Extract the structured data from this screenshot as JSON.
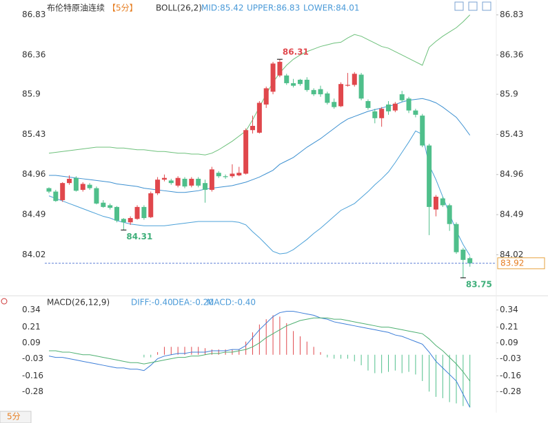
{
  "chart_data": [
    {
      "type": "candlestick",
      "title": "布伦特原油连续",
      "period": "【5分】",
      "indicator": "BOLL(26,2)",
      "up_color": "#e0474c",
      "down_color": "#4fbf8b",
      "price_line_color": "#5b7fd6",
      "ylim": [
        83.58,
        86.94
      ],
      "yticks": [
        86.83,
        86.36,
        85.9,
        85.43,
        84.96,
        84.49,
        84.02
      ],
      "open": [
        84.8,
        84.76,
        84.66,
        84.86,
        84.92,
        84.78,
        84.84,
        84.8,
        84.63,
        84.6,
        84.58,
        84.44,
        84.4,
        84.44,
        84.58,
        84.46,
        84.74,
        84.9,
        84.89,
        84.83,
        84.91,
        84.83,
        84.91,
        84.86,
        84.78,
        84.98,
        84.94,
        84.94,
        84.95,
        84.97,
        85.48,
        85.45,
        85.78,
        85.93,
        86.12,
        86.12,
        86.03,
        86.07,
        86.07,
        85.95,
        85.96,
        85.91,
        85.81,
        85.76,
        86.0,
        86.01,
        86.13,
        85.82,
        85.7,
        85.62,
        85.78,
        85.71,
        85.9,
        85.85,
        85.71,
        85.65,
        85.3,
        84.55,
        84.68,
        84.6,
        84.38,
        84.08,
        83.98
      ],
      "high": [
        84.81,
        84.78,
        84.87,
        84.95,
        84.94,
        84.87,
        84.86,
        84.82,
        84.66,
        84.62,
        84.59,
        84.45,
        84.47,
        84.6,
        84.6,
        84.76,
        84.93,
        84.96,
        84.91,
        84.94,
        84.93,
        84.93,
        84.93,
        84.9,
        85.05,
        85.0,
        84.96,
        85.08,
        85.05,
        85.5,
        85.65,
        85.82,
        85.99,
        86.28,
        86.31,
        86.14,
        86.08,
        86.08,
        86.1,
        85.97,
        86.0,
        85.93,
        85.85,
        86.04,
        86.15,
        86.16,
        86.15,
        85.84,
        85.73,
        85.75,
        85.82,
        85.81,
        85.94,
        85.87,
        85.73,
        85.67,
        85.32,
        84.72,
        84.7,
        84.62,
        84.4,
        84.1,
        84.0
      ],
      "low": [
        84.74,
        84.64,
        84.64,
        84.84,
        84.76,
        84.76,
        84.78,
        84.61,
        84.57,
        84.55,
        84.4,
        84.31,
        84.37,
        84.43,
        84.43,
        84.45,
        84.72,
        84.88,
        84.84,
        84.81,
        84.8,
        84.81,
        84.81,
        84.63,
        84.76,
        84.92,
        84.91,
        84.92,
        84.94,
        84.96,
        85.44,
        85.44,
        85.74,
        85.9,
        86.1,
        86.01,
        85.98,
        86.0,
        85.93,
        85.88,
        85.87,
        85.78,
        85.73,
        85.75,
        85.99,
        85.99,
        85.83,
        85.72,
        85.56,
        85.52,
        85.66,
        85.69,
        85.81,
        85.68,
        85.63,
        85.28,
        84.25,
        84.47,
        84.58,
        84.3,
        84.03,
        83.75,
        83.88
      ],
      "close": [
        84.76,
        84.65,
        84.86,
        84.91,
        84.77,
        84.85,
        84.8,
        84.62,
        84.58,
        84.57,
        84.42,
        84.4,
        84.45,
        84.58,
        84.45,
        84.74,
        84.9,
        84.92,
        84.86,
        84.92,
        84.82,
        84.91,
        84.83,
        84.78,
        85.02,
        84.94,
        84.93,
        84.97,
        84.98,
        85.48,
        85.53,
        85.8,
        85.97,
        86.26,
        86.28,
        86.03,
        86.0,
        86.02,
        85.95,
        85.9,
        85.9,
        85.8,
        85.75,
        86.02,
        86.01,
        86.14,
        85.85,
        85.74,
        85.62,
        85.73,
        85.7,
        85.79,
        85.83,
        85.71,
        85.66,
        85.3,
        84.58,
        84.7,
        84.6,
        84.38,
        84.05,
        83.96,
        83.92
      ],
      "bands": [
        {
          "label": "MID:85.42",
          "color": "#3b8fd0",
          "values": [
            84.95,
            84.95,
            84.94,
            84.93,
            84.92,
            84.91,
            84.9,
            84.89,
            84.88,
            84.87,
            84.85,
            84.84,
            84.83,
            84.82,
            84.8,
            84.79,
            84.78,
            84.77,
            84.76,
            84.75,
            84.75,
            84.76,
            84.77,
            84.79,
            84.8,
            84.81,
            84.82,
            84.83,
            84.85,
            84.87,
            84.9,
            84.93,
            84.97,
            85.01,
            85.08,
            85.12,
            85.16,
            85.22,
            85.28,
            85.33,
            85.38,
            85.44,
            85.5,
            85.56,
            85.61,
            85.64,
            85.67,
            85.7,
            85.72,
            85.74,
            85.76,
            85.78,
            85.81,
            85.83,
            85.84,
            85.85,
            85.83,
            85.8,
            85.75,
            85.69,
            85.63,
            85.53,
            85.42
          ]
        },
        {
          "label": "UPPER:86.83",
          "color": "#6cc07a",
          "values": [
            85.21,
            85.22,
            85.23,
            85.24,
            85.25,
            85.26,
            85.27,
            85.28,
            85.28,
            85.28,
            85.27,
            85.27,
            85.26,
            85.25,
            85.25,
            85.24,
            85.23,
            85.23,
            85.22,
            85.21,
            85.21,
            85.2,
            85.2,
            85.19,
            85.21,
            85.25,
            85.3,
            85.35,
            85.41,
            85.47,
            85.6,
            85.75,
            85.9,
            86.04,
            86.15,
            86.24,
            86.31,
            86.36,
            86.4,
            86.43,
            86.46,
            86.48,
            86.5,
            86.51,
            86.56,
            86.6,
            86.58,
            86.54,
            86.5,
            86.46,
            86.44,
            86.4,
            86.36,
            86.32,
            86.28,
            86.24,
            86.45,
            86.52,
            86.58,
            86.63,
            86.68,
            86.75,
            86.83
          ]
        },
        {
          "label": "LOWER:84.01",
          "color": "#4aa0d8",
          "values": [
            84.71,
            84.68,
            84.65,
            84.62,
            84.59,
            84.56,
            84.53,
            84.5,
            84.47,
            84.45,
            84.42,
            84.4,
            84.38,
            84.37,
            84.36,
            84.36,
            84.36,
            84.36,
            84.37,
            84.38,
            84.39,
            84.4,
            84.41,
            84.41,
            84.41,
            84.41,
            84.41,
            84.41,
            84.4,
            84.37,
            84.29,
            84.22,
            84.14,
            84.06,
            84.03,
            84.04,
            84.08,
            84.14,
            84.2,
            84.27,
            84.33,
            84.4,
            84.47,
            84.54,
            84.58,
            84.62,
            84.69,
            84.76,
            84.84,
            84.91,
            84.99,
            85.1,
            85.22,
            85.34,
            85.47,
            85.43,
            85.07,
            84.9,
            84.7,
            84.5,
            84.3,
            84.14,
            84.01
          ]
        }
      ]
    },
    {
      "type": "macd",
      "title": "MACD(26,12,9)",
      "ylim": [
        -0.43,
        0.37
      ],
      "yticks": [
        0.34,
        0.21,
        0.09,
        -0.03,
        -0.16,
        -0.28
      ],
      "up_color": "#e0474c",
      "down_color": "#4fbf8b",
      "period_tab": "5分",
      "histogram": {
        "label": "MACD:-0.40",
        "values": [
          null,
          null,
          null,
          null,
          null,
          null,
          null,
          null,
          null,
          null,
          null,
          null,
          null,
          null,
          -0.02,
          -0.02,
          0.02,
          0.06,
          0.06,
          0.06,
          0.06,
          0.06,
          0.06,
          0.05,
          0.04,
          0.04,
          0.04,
          0.04,
          0.04,
          0.1,
          0.17,
          0.23,
          0.27,
          0.3,
          0.29,
          0.24,
          0.18,
          0.14,
          0.1,
          0.06,
          0.02,
          -0.02,
          -0.03,
          -0.03,
          -0.03,
          -0.05,
          -0.08,
          -0.12,
          -0.14,
          -0.14,
          -0.13,
          -0.12,
          -0.14,
          -0.13,
          -0.15,
          -0.2,
          -0.28,
          -0.32,
          -0.33,
          -0.36,
          -0.37,
          -0.39,
          -0.4
        ]
      },
      "series": [
        {
          "name": "DIFF:-0.40",
          "color": "#3b7dd8",
          "values": [
            -0.01,
            -0.02,
            -0.02,
            -0.03,
            -0.04,
            -0.05,
            -0.06,
            -0.07,
            -0.08,
            -0.09,
            -0.1,
            -0.1,
            -0.11,
            -0.11,
            -0.12,
            -0.08,
            -0.03,
            -0.01,
            0.0,
            0.01,
            0.01,
            0.02,
            0.02,
            0.02,
            0.03,
            0.03,
            0.03,
            0.04,
            0.04,
            0.07,
            0.13,
            0.19,
            0.24,
            0.29,
            0.32,
            0.33,
            0.33,
            0.32,
            0.31,
            0.3,
            0.28,
            0.27,
            0.25,
            0.24,
            0.23,
            0.22,
            0.21,
            0.2,
            0.19,
            0.18,
            0.17,
            0.15,
            0.14,
            0.12,
            0.1,
            0.08,
            0.02,
            -0.05,
            -0.1,
            -0.15,
            -0.2,
            -0.3,
            -0.4
          ]
        },
        {
          "name": "DEA:-0.20",
          "color": "#4caf70",
          "values": [
            0.03,
            0.03,
            0.02,
            0.02,
            0.01,
            0.0,
            0.0,
            -0.01,
            -0.02,
            -0.03,
            -0.04,
            -0.05,
            -0.06,
            -0.06,
            -0.07,
            -0.06,
            -0.05,
            -0.04,
            -0.03,
            -0.02,
            -0.02,
            -0.01,
            -0.01,
            0.0,
            0.01,
            0.01,
            0.02,
            0.02,
            0.03,
            0.04,
            0.06,
            0.09,
            0.13,
            0.16,
            0.19,
            0.22,
            0.24,
            0.26,
            0.27,
            0.28,
            0.28,
            0.28,
            0.27,
            0.27,
            0.26,
            0.25,
            0.24,
            0.23,
            0.22,
            0.21,
            0.21,
            0.2,
            0.19,
            0.18,
            0.17,
            0.16,
            0.12,
            0.07,
            0.03,
            -0.02,
            -0.07,
            -0.13,
            -0.2
          ]
        }
      ]
    }
  ]
}
